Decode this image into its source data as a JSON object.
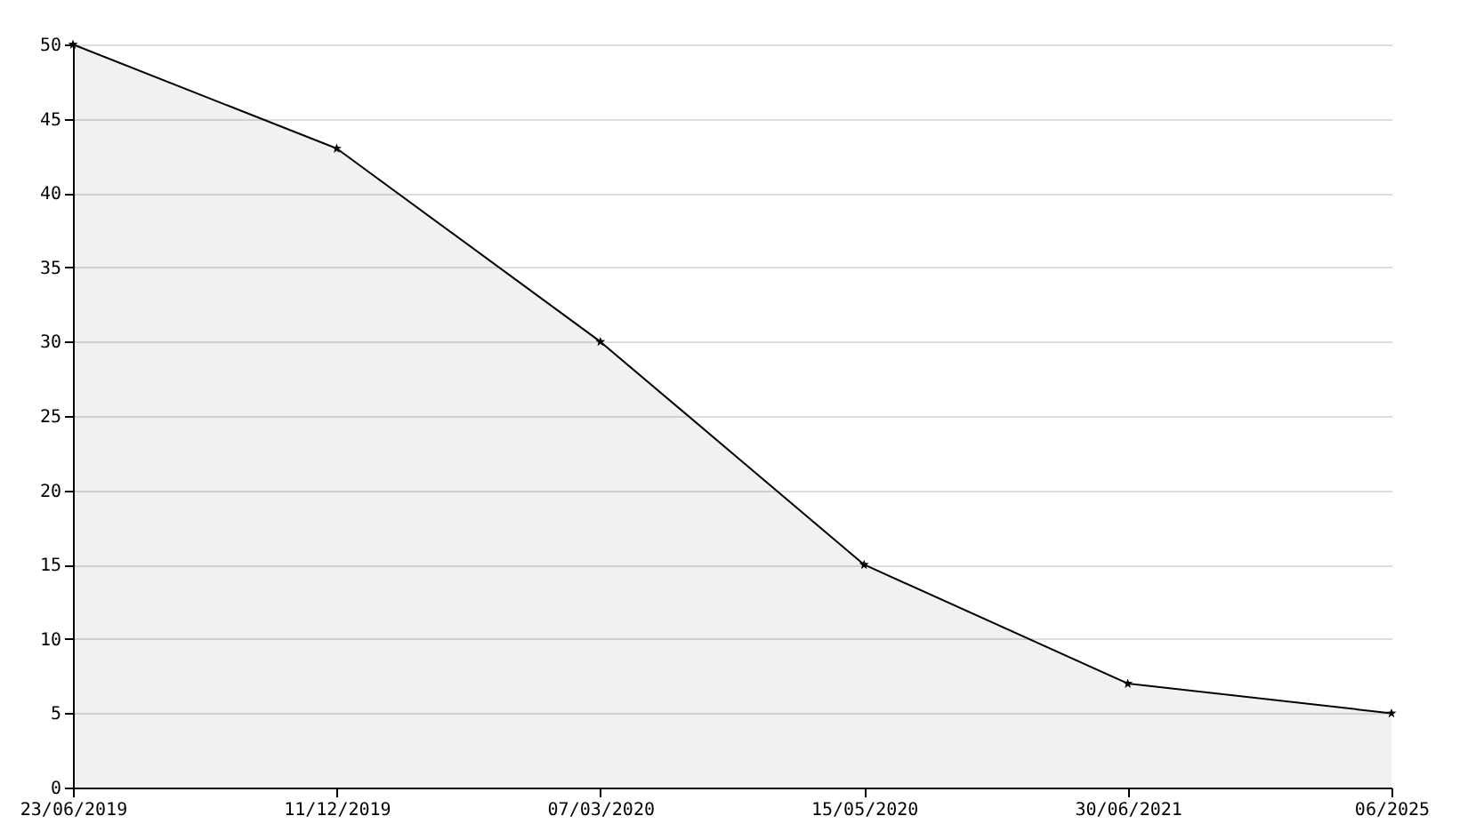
{
  "chart_data": {
    "type": "area",
    "categories": [
      "23/06/2019",
      "11/12/2019",
      "07/03/2020",
      "15/05/2020",
      "30/06/2021",
      "06/2025"
    ],
    "series": [
      {
        "color": "#000000",
        "values": [
          50,
          43,
          30,
          15,
          7,
          5
        ]
      }
    ],
    "ylim": [
      0,
      50
    ],
    "yticks": [
      0,
      5,
      10,
      15,
      20,
      25,
      30,
      35,
      40,
      45,
      50
    ],
    "grid": "y",
    "marker": "star"
  }
}
